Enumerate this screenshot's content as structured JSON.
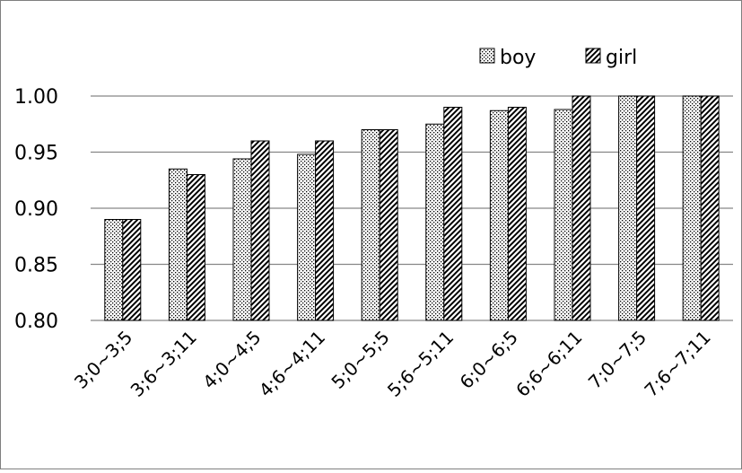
{
  "chart_data": {
    "type": "bar",
    "title": "",
    "xlabel": "",
    "ylabel": "",
    "ylim": [
      0.8,
      1.0
    ],
    "yticks": [
      "0.80",
      "0.85",
      "0.90",
      "0.95",
      "1.00"
    ],
    "grid": true,
    "legend_position": "top-right",
    "categories": [
      "3;0~3;5",
      "3;6~3;11",
      "4;0~4;5",
      "4;6~4;11",
      "5;0~5;5",
      "5;6~5;11",
      "6;0~6;5",
      "6;6~6;11",
      "7;0~7;5",
      "7;6~7;11"
    ],
    "series": [
      {
        "name": "boy",
        "pattern": "dots",
        "values": [
          0.89,
          0.935,
          0.944,
          0.948,
          0.97,
          0.975,
          0.987,
          0.988,
          1.0,
          1.0
        ]
      },
      {
        "name": "girl",
        "pattern": "diagonal",
        "values": [
          0.89,
          0.93,
          0.96,
          0.96,
          0.97,
          0.99,
          0.99,
          1.0,
          1.0,
          1.0
        ]
      }
    ]
  }
}
